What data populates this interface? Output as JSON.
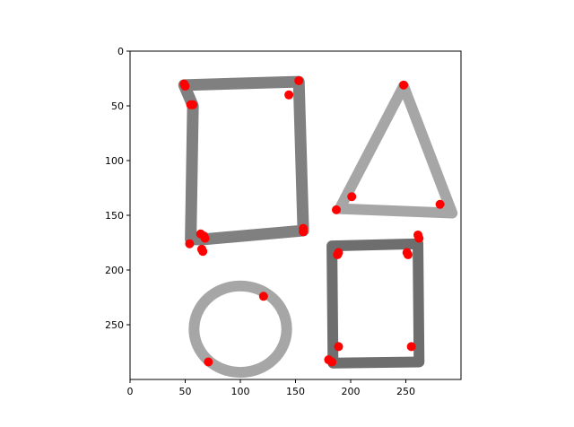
{
  "chart_data": {
    "type": "scatter",
    "title": "",
    "xlabel": "",
    "ylabel": "",
    "xlim": [
      0,
      300
    ],
    "ylim": [
      300,
      0
    ],
    "y_inverted": true,
    "grid": false,
    "legend": "none",
    "x_ticks": [
      0,
      50,
      100,
      150,
      200,
      250
    ],
    "y_ticks": [
      0,
      50,
      100,
      150,
      200,
      250
    ],
    "x_tick_labels": [
      "0",
      "50",
      "100",
      "150",
      "200",
      "250"
    ],
    "y_tick_labels": [
      "0",
      "50",
      "100",
      "150",
      "200",
      "250"
    ],
    "background_image": {
      "description_shapes": [
        "left rectangle",
        "triangle",
        "circle",
        "right rectangle"
      ],
      "stroke_colors": {
        "left_rectangle": "#808080",
        "triangle": "#a6a6a6",
        "circle": "#a6a6a6",
        "right_rectangle": "#6e6e6e"
      }
    },
    "series": [
      {
        "color": "#ff0000",
        "points": [
          {
            "x": 49,
            "y": 30
          },
          {
            "x": 50,
            "y": 32
          },
          {
            "x": 55,
            "y": 49
          },
          {
            "x": 57,
            "y": 49
          },
          {
            "x": 153,
            "y": 27
          },
          {
            "x": 144,
            "y": 40
          },
          {
            "x": 157,
            "y": 162
          },
          {
            "x": 157,
            "y": 165
          },
          {
            "x": 64,
            "y": 167
          },
          {
            "x": 67,
            "y": 169
          },
          {
            "x": 68,
            "y": 171
          },
          {
            "x": 54,
            "y": 176
          },
          {
            "x": 65,
            "y": 181
          },
          {
            "x": 66,
            "y": 183
          },
          {
            "x": 248,
            "y": 31
          },
          {
            "x": 201,
            "y": 133
          },
          {
            "x": 187,
            "y": 145
          },
          {
            "x": 281,
            "y": 140
          },
          {
            "x": 261,
            "y": 168
          },
          {
            "x": 262,
            "y": 171
          },
          {
            "x": 189,
            "y": 184
          },
          {
            "x": 188,
            "y": 186
          },
          {
            "x": 251,
            "y": 184
          },
          {
            "x": 252,
            "y": 186
          },
          {
            "x": 121,
            "y": 224
          },
          {
            "x": 189,
            "y": 270
          },
          {
            "x": 255,
            "y": 270
          },
          {
            "x": 180,
            "y": 282
          },
          {
            "x": 183,
            "y": 284
          },
          {
            "x": 71,
            "y": 284
          }
        ]
      }
    ]
  }
}
